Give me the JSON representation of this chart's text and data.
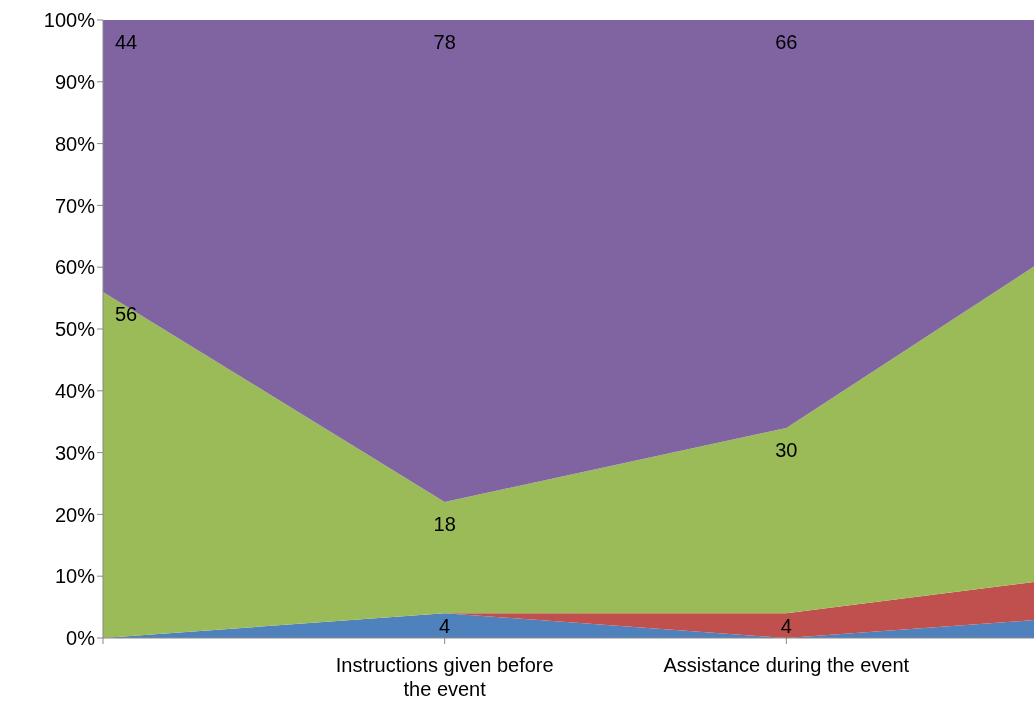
{
  "chart_data": {
    "type": "area",
    "stacked": true,
    "categories": [
      null,
      "Instructions given before the event",
      "Assistance during the event",
      null
    ],
    "series": [
      {
        "color": "#4f81bd",
        "values": [
          0,
          4,
          0,
          4
        ],
        "value_labels": [
          null,
          "4",
          null,
          null
        ]
      },
      {
        "color": "#c0504d",
        "values": [
          0,
          0,
          4,
          7
        ],
        "value_labels": [
          null,
          null,
          "4",
          null
        ]
      },
      {
        "color": "#9bbb59",
        "values": [
          56,
          18,
          30,
          59
        ],
        "value_labels": [
          "56",
          "18",
          "30",
          null
        ]
      },
      {
        "color": "#8064a2",
        "values": [
          44,
          78,
          66,
          30
        ],
        "value_labels": [
          "44",
          "78",
          "66",
          null
        ]
      }
    ],
    "ylim": [
      0,
      100
    ],
    "yticks": [
      {
        "value": 0,
        "label": "0%"
      },
      {
        "value": 10,
        "label": "10%"
      },
      {
        "value": 20,
        "label": "20%"
      },
      {
        "value": 30,
        "label": "30%"
      },
      {
        "value": 40,
        "label": "40%"
      },
      {
        "value": 50,
        "label": "50%"
      },
      {
        "value": 60,
        "label": "60%"
      },
      {
        "value": 70,
        "label": "70%"
      },
      {
        "value": 80,
        "label": "80%"
      },
      {
        "value": 90,
        "label": "90%"
      },
      {
        "value": 100,
        "label": "100%"
      }
    ],
    "grid": false,
    "legend": false
  }
}
